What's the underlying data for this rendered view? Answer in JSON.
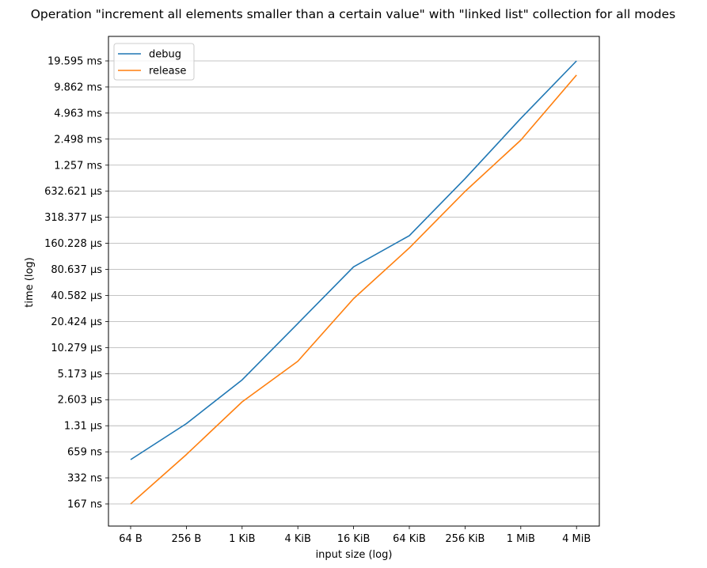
{
  "chart_data": {
    "type": "line",
    "title": "Operation \"increment all elements smaller than a certain value\" with \"linked list\" collection for all modes",
    "xlabel": "input size (log)",
    "ylabel": "time (log)",
    "x_scale": "log",
    "y_scale": "log",
    "categories": [
      "64 B",
      "256 B",
      "1 KiB",
      "4 KiB",
      "16 KiB",
      "64 KiB",
      "256 KiB",
      "1 MiB",
      "4 MiB"
    ],
    "y_ticks": [
      "167 ns",
      "332 ns",
      "659 ns",
      "1.31 µs",
      "2.603 µs",
      "5.173 µs",
      "10.279 µs",
      "20.424 µs",
      "40.582 µs",
      "80.637 µs",
      "160.228 µs",
      "318.377 µs",
      "632.621 µs",
      "1.257 ms",
      "2.498 ms",
      "4.963 ms",
      "9.862 ms",
      "19.595 ms"
    ],
    "y_tick_values_ns": [
      167,
      332,
      659,
      1310,
      2603,
      5173,
      10279,
      20424,
      40582,
      80637,
      160228,
      318377,
      632621,
      1257000,
      2498000,
      4963000,
      9862000,
      19595000
    ],
    "grid": "horizontal",
    "legend_position": "top-left",
    "series": [
      {
        "name": "debug",
        "color": "#1f77b4",
        "values_ns": [
          537,
          1385,
          4390,
          19400,
          86300,
          196000,
          881000,
          4310000,
          19595000
        ]
      },
      {
        "name": "release",
        "color": "#ff7f0e",
        "values_ns": [
          167,
          613,
          2460,
          7180,
          37300,
          142000,
          629000,
          2430000,
          13500000
        ]
      }
    ]
  }
}
